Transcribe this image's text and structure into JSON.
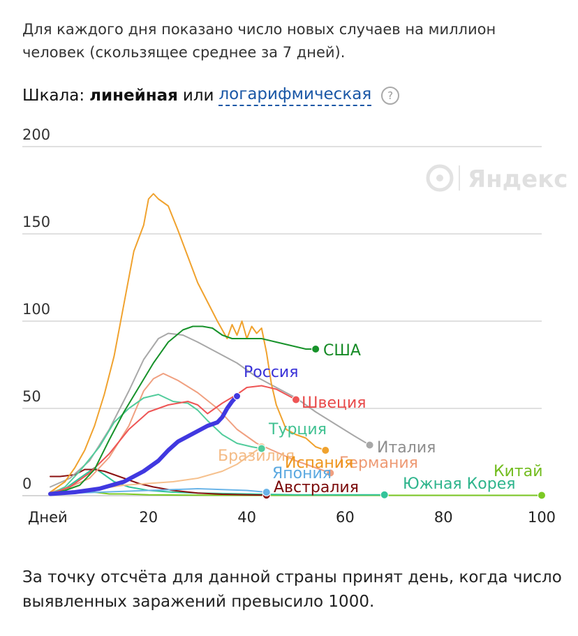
{
  "intro_text": "Для каждого дня показано число новых случаев на миллион человек (скользящее среднее за 7 дней).",
  "scale": {
    "prefix": "Шкала:",
    "linear": "линейная",
    "or": "или",
    "log": "логарифмическая",
    "help": "?"
  },
  "watermark": "Яндекс",
  "footer_text": "За точку отсчёта для данной страны принят день, когда число выявленных заражений превысило 1000.",
  "chart_data": {
    "type": "line",
    "x_axis": {
      "range": [
        0,
        100
      ],
      "ticks": [
        20,
        40,
        60,
        80,
        100
      ],
      "first_label": "Дней"
    },
    "y_axis": {
      "range": [
        0,
        200
      ],
      "ticks": [
        0,
        50,
        100,
        150,
        200
      ]
    },
    "grid": true,
    "series": [
      {
        "name": "Китай",
        "color": "#7cc924",
        "width": 2,
        "points": [
          [
            0,
            1
          ],
          [
            3,
            2
          ],
          [
            6,
            3
          ],
          [
            9,
            2
          ],
          [
            12,
            1
          ],
          [
            15,
            1
          ],
          [
            20,
            0.5
          ],
          [
            30,
            0.3
          ],
          [
            40,
            0.2
          ],
          [
            50,
            0.2
          ],
          [
            60,
            0.2
          ],
          [
            70,
            0.2
          ],
          [
            80,
            0.2
          ],
          [
            90,
            0.2
          ],
          [
            100,
            0.2
          ]
        ]
      },
      {
        "name": "Южная Корея",
        "color": "#33c49a",
        "width": 2,
        "points": [
          [
            0,
            1
          ],
          [
            3,
            4
          ],
          [
            6,
            10
          ],
          [
            9,
            16
          ],
          [
            11,
            12
          ],
          [
            13,
            8
          ],
          [
            16,
            5
          ],
          [
            20,
            3
          ],
          [
            25,
            2
          ],
          [
            30,
            1.5
          ],
          [
            40,
            1
          ],
          [
            50,
            0.5
          ],
          [
            60,
            0.5
          ],
          [
            68,
            0.5
          ]
        ]
      },
      {
        "name": "Австралия",
        "color": "#8b1111",
        "width": 2,
        "points": [
          [
            0,
            11
          ],
          [
            2,
            11
          ],
          [
            5,
            12
          ],
          [
            7,
            15
          ],
          [
            9,
            15
          ],
          [
            11,
            14
          ],
          [
            13,
            12
          ],
          [
            15,
            10
          ],
          [
            18,
            7
          ],
          [
            21,
            5
          ],
          [
            25,
            3
          ],
          [
            30,
            1.5
          ],
          [
            35,
            0.8
          ],
          [
            40,
            0.5
          ],
          [
            44,
            0.3
          ]
        ]
      },
      {
        "name": "Япония",
        "color": "#6ab4e8",
        "width": 2,
        "points": [
          [
            0,
            1
          ],
          [
            5,
            1.5
          ],
          [
            10,
            2
          ],
          [
            15,
            2.5
          ],
          [
            20,
            3
          ],
          [
            25,
            3.5
          ],
          [
            30,
            4
          ],
          [
            35,
            3.5
          ],
          [
            40,
            3
          ],
          [
            44,
            2
          ]
        ]
      },
      {
        "name": "Бразилия",
        "color": "#f6c18e",
        "width": 2,
        "points": [
          [
            0,
            1
          ],
          [
            5,
            2
          ],
          [
            10,
            4
          ],
          [
            15,
            6
          ],
          [
            20,
            7
          ],
          [
            25,
            8
          ],
          [
            30,
            10
          ],
          [
            35,
            14
          ],
          [
            38,
            18
          ],
          [
            41,
            24
          ],
          [
            43,
            28
          ]
        ]
      },
      {
        "name": "Германия",
        "color": "#f0a080",
        "width": 2,
        "points": [
          [
            0,
            2
          ],
          [
            4,
            5
          ],
          [
            8,
            10
          ],
          [
            12,
            22
          ],
          [
            16,
            40
          ],
          [
            19,
            60
          ],
          [
            21,
            67
          ],
          [
            23,
            70
          ],
          [
            26,
            66
          ],
          [
            30,
            59
          ],
          [
            34,
            50
          ],
          [
            38,
            38
          ],
          [
            42,
            30
          ],
          [
            46,
            25
          ],
          [
            50,
            20
          ],
          [
            54,
            16
          ],
          [
            57,
            13
          ]
        ]
      },
      {
        "name": "Италия",
        "color": "#a8a8a8",
        "width": 2,
        "points": [
          [
            0,
            5
          ],
          [
            4,
            10
          ],
          [
            8,
            20
          ],
          [
            12,
            38
          ],
          [
            16,
            60
          ],
          [
            19,
            78
          ],
          [
            22,
            90
          ],
          [
            24,
            93
          ],
          [
            27,
            92
          ],
          [
            30,
            88
          ],
          [
            34,
            82
          ],
          [
            38,
            76
          ],
          [
            42,
            68
          ],
          [
            46,
            62
          ],
          [
            50,
            56
          ],
          [
            54,
            48
          ],
          [
            58,
            41
          ],
          [
            62,
            34
          ],
          [
            65,
            29
          ]
        ]
      },
      {
        "name": "Испания",
        "color": "#f0a22e",
        "width": 2,
        "points": [
          [
            0,
            2
          ],
          [
            3,
            8
          ],
          [
            5,
            16
          ],
          [
            7,
            26
          ],
          [
            9,
            40
          ],
          [
            11,
            58
          ],
          [
            13,
            80
          ],
          [
            15,
            110
          ],
          [
            17,
            140
          ],
          [
            19,
            155
          ],
          [
            20,
            170
          ],
          [
            21,
            173
          ],
          [
            22,
            170
          ],
          [
            24,
            166
          ],
          [
            26,
            152
          ],
          [
            28,
            137
          ],
          [
            30,
            122
          ],
          [
            32,
            111
          ],
          [
            34,
            100
          ],
          [
            35,
            95
          ],
          [
            36,
            90
          ],
          [
            37,
            98
          ],
          [
            38,
            92
          ],
          [
            39,
            100
          ],
          [
            40,
            90
          ],
          [
            41,
            97
          ],
          [
            42,
            93
          ],
          [
            43,
            96
          ],
          [
            44,
            82
          ],
          [
            45,
            64
          ],
          [
            46,
            52
          ],
          [
            47,
            45
          ],
          [
            48,
            38
          ],
          [
            50,
            35
          ],
          [
            52,
            33
          ],
          [
            54,
            28
          ],
          [
            56,
            26
          ]
        ]
      },
      {
        "name": "Турция",
        "color": "#52cc9c",
        "width": 2,
        "points": [
          [
            0,
            1
          ],
          [
            3,
            5
          ],
          [
            6,
            14
          ],
          [
            10,
            28
          ],
          [
            13,
            42
          ],
          [
            16,
            50
          ],
          [
            19,
            56
          ],
          [
            22,
            58
          ],
          [
            25,
            54
          ],
          [
            28,
            53
          ],
          [
            30,
            49
          ],
          [
            32,
            43
          ],
          [
            35,
            35
          ],
          [
            38,
            30
          ],
          [
            41,
            28
          ],
          [
            43,
            27
          ]
        ]
      },
      {
        "name": "Швеция",
        "color": "#ee5555",
        "width": 2,
        "points": [
          [
            0,
            1
          ],
          [
            4,
            5
          ],
          [
            8,
            13
          ],
          [
            12,
            24
          ],
          [
            16,
            38
          ],
          [
            20,
            48
          ],
          [
            24,
            52
          ],
          [
            28,
            54
          ],
          [
            30,
            52
          ],
          [
            32,
            47
          ],
          [
            35,
            53
          ],
          [
            38,
            58
          ],
          [
            40,
            62
          ],
          [
            43,
            63
          ],
          [
            46,
            61
          ],
          [
            48,
            58
          ],
          [
            50,
            55
          ]
        ]
      },
      {
        "name": "США",
        "color": "#17922a",
        "width": 2,
        "points": [
          [
            0,
            1
          ],
          [
            3,
            3
          ],
          [
            6,
            6
          ],
          [
            9,
            15
          ],
          [
            12,
            32
          ],
          [
            15,
            48
          ],
          [
            18,
            62
          ],
          [
            21,
            76
          ],
          [
            24,
            88
          ],
          [
            27,
            95
          ],
          [
            29,
            97
          ],
          [
            31,
            97
          ],
          [
            33,
            96
          ],
          [
            35,
            92
          ],
          [
            37,
            90
          ],
          [
            40,
            90
          ],
          [
            43,
            90
          ],
          [
            46,
            88
          ],
          [
            49,
            86
          ],
          [
            52,
            84
          ],
          [
            54,
            84
          ]
        ]
      },
      {
        "name": "Россия",
        "color": "#4038e0",
        "width": 6,
        "points": [
          [
            0,
            1
          ],
          [
            5,
            2
          ],
          [
            10,
            4
          ],
          [
            15,
            8
          ],
          [
            19,
            14
          ],
          [
            22,
            20
          ],
          [
            24,
            26
          ],
          [
            26,
            31
          ],
          [
            28,
            34
          ],
          [
            30,
            37
          ],
          [
            32,
            40
          ],
          [
            34,
            42
          ],
          [
            35,
            45
          ],
          [
            36,
            50
          ],
          [
            37,
            54
          ],
          [
            38,
            57
          ]
        ]
      }
    ],
    "labels": [
      {
        "text": "Китай",
        "color": "#72bc1e"
      },
      {
        "text": "Южная Корея",
        "color": "#2eb48c"
      },
      {
        "text": "Австралия",
        "color": "#7b0a0a"
      },
      {
        "text": "Япония",
        "color": "#5aa8e0"
      },
      {
        "text": "Бразилия",
        "color": "#f4bb85"
      },
      {
        "text": "Германия",
        "color": "#ee9a74"
      },
      {
        "text": "Италия",
        "color": "#8e8e8e"
      },
      {
        "text": "Испания",
        "color": "#ee951c"
      },
      {
        "text": "Турция",
        "color": "#3fc191"
      },
      {
        "text": "Швеция",
        "color": "#e84a4a"
      },
      {
        "text": "США",
        "color": "#158a25"
      },
      {
        "text": "Россия",
        "color": "#3a32d8"
      }
    ]
  }
}
